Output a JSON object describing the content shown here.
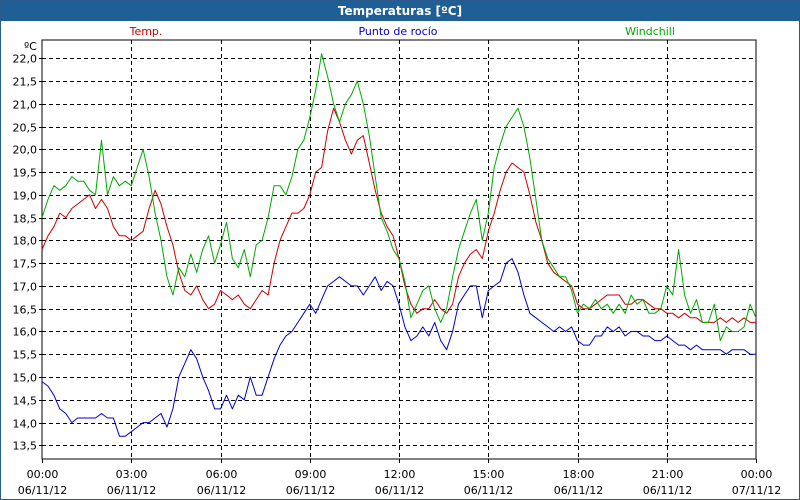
{
  "window": {
    "title": "Temperaturas [ºC]"
  },
  "chart_data": {
    "type": "line",
    "yunit": "ºC",
    "ylim": [
      13.2,
      22.4
    ],
    "yticks": [
      "13,5",
      "14,0",
      "14,5",
      "15,0",
      "15,5",
      "16,0",
      "16,5",
      "17,0",
      "17,5",
      "18,0",
      "18,5",
      "19,0",
      "19,5",
      "20,0",
      "20,5",
      "21,0",
      "21,5",
      "22,0"
    ],
    "ytick_values": [
      13.5,
      14.0,
      14.5,
      15.0,
      15.5,
      16.0,
      16.5,
      17.0,
      17.5,
      18.0,
      18.5,
      19.0,
      19.5,
      20.0,
      20.5,
      21.0,
      21.5,
      22.0
    ],
    "xlim": [
      0,
      24
    ],
    "xticks": [
      {
        "time": "00:00",
        "date": "06/11/12"
      },
      {
        "time": "03:00",
        "date": "06/11/12"
      },
      {
        "time": "06:00",
        "date": "06/11/12"
      },
      {
        "time": "09:00",
        "date": "06/11/12"
      },
      {
        "time": "12:00",
        "date": "06/11/12"
      },
      {
        "time": "15:00",
        "date": "06/11/12"
      },
      {
        "time": "18:00",
        "date": "06/11/12"
      },
      {
        "time": "21:00",
        "date": "06/11/12"
      },
      {
        "time": "00:00",
        "date": "07/11/12"
      }
    ],
    "xtick_hours": [
      0,
      3,
      6,
      9,
      12,
      15,
      18,
      21,
      24
    ],
    "grid": true,
    "legend": "top",
    "series": [
      {
        "name": "Temp.",
        "color": "#cc0000",
        "x": [
          0,
          0.2,
          0.4,
          0.6,
          0.8,
          1.0,
          1.2,
          1.4,
          1.6,
          1.8,
          2.0,
          2.2,
          2.4,
          2.6,
          2.8,
          3.0,
          3.2,
          3.4,
          3.6,
          3.8,
          4.0,
          4.2,
          4.4,
          4.6,
          4.8,
          5.0,
          5.2,
          5.4,
          5.6,
          5.8,
          6.0,
          6.2,
          6.4,
          6.6,
          6.8,
          7.0,
          7.2,
          7.4,
          7.6,
          7.8,
          8.0,
          8.2,
          8.4,
          8.6,
          8.8,
          9.0,
          9.2,
          9.4,
          9.6,
          9.8,
          10.0,
          10.2,
          10.4,
          10.6,
          10.8,
          11.0,
          11.2,
          11.4,
          11.6,
          11.8,
          12.0,
          12.2,
          12.4,
          12.6,
          12.8,
          13.0,
          13.2,
          13.4,
          13.6,
          13.8,
          14.0,
          14.2,
          14.4,
          14.6,
          14.8,
          15.0,
          15.2,
          15.4,
          15.6,
          15.8,
          16.0,
          16.2,
          16.4,
          16.6,
          16.8,
          17.0,
          17.2,
          17.4,
          17.6,
          17.8,
          18.0,
          18.2,
          18.4,
          18.6,
          18.8,
          19.0,
          19.2,
          19.4,
          19.6,
          19.8,
          20.0,
          20.2,
          20.4,
          20.6,
          20.8,
          21.0,
          21.2,
          21.4,
          21.6,
          21.8,
          22.0,
          22.2,
          22.4,
          22.6,
          22.8,
          23.0,
          23.2,
          23.4,
          23.6,
          23.8,
          24.0
        ],
        "values": [
          17.8,
          18.1,
          18.3,
          18.6,
          18.5,
          18.7,
          18.8,
          18.9,
          19.0,
          18.7,
          18.9,
          18.7,
          18.3,
          18.1,
          18.1,
          18.0,
          18.1,
          18.2,
          18.7,
          19.1,
          18.8,
          18.3,
          17.9,
          17.3,
          16.9,
          16.8,
          17.0,
          16.7,
          16.5,
          16.6,
          16.9,
          16.8,
          16.7,
          16.8,
          16.6,
          16.5,
          16.7,
          16.9,
          16.8,
          17.5,
          18.0,
          18.3,
          18.6,
          18.6,
          18.7,
          19.0,
          19.5,
          19.6,
          20.4,
          20.9,
          20.6,
          20.2,
          19.9,
          20.2,
          20.3,
          19.7,
          19.1,
          18.6,
          18.3,
          18.1,
          17.6,
          17.0,
          16.6,
          16.4,
          16.5,
          16.5,
          16.7,
          16.5,
          16.4,
          16.6,
          17.2,
          17.5,
          17.7,
          17.8,
          17.6,
          18.2,
          18.6,
          19.1,
          19.5,
          19.7,
          19.6,
          19.5,
          19.0,
          18.4,
          18.0,
          17.5,
          17.3,
          17.2,
          17.1,
          17.0,
          16.6,
          16.5,
          16.5,
          16.6,
          16.7,
          16.8,
          16.8,
          16.8,
          16.6,
          16.6,
          16.7,
          16.7,
          16.6,
          16.5,
          16.5,
          16.4,
          16.4,
          16.3,
          16.4,
          16.3,
          16.3,
          16.2,
          16.2,
          16.2,
          16.3,
          16.2,
          16.3,
          16.2,
          16.3,
          16.2,
          16.2
        ]
      },
      {
        "name": "Punto de rocío",
        "color": "#0000cc",
        "x": [
          0,
          0.2,
          0.4,
          0.6,
          0.8,
          1.0,
          1.2,
          1.4,
          1.6,
          1.8,
          2.0,
          2.2,
          2.4,
          2.6,
          2.8,
          3.0,
          3.2,
          3.4,
          3.6,
          3.8,
          4.0,
          4.2,
          4.4,
          4.6,
          4.8,
          5.0,
          5.2,
          5.4,
          5.6,
          5.8,
          6.0,
          6.2,
          6.4,
          6.6,
          6.8,
          7.0,
          7.2,
          7.4,
          7.6,
          7.8,
          8.0,
          8.2,
          8.4,
          8.6,
          8.8,
          9.0,
          9.2,
          9.4,
          9.6,
          9.8,
          10.0,
          10.2,
          10.4,
          10.6,
          10.8,
          11.0,
          11.2,
          11.4,
          11.6,
          11.8,
          12.0,
          12.2,
          12.4,
          12.6,
          12.8,
          13.0,
          13.2,
          13.4,
          13.6,
          13.8,
          14.0,
          14.2,
          14.4,
          14.6,
          14.8,
          15.0,
          15.2,
          15.4,
          15.6,
          15.8,
          16.0,
          16.2,
          16.4,
          16.6,
          16.8,
          17.0,
          17.2,
          17.4,
          17.6,
          17.8,
          18.0,
          18.2,
          18.4,
          18.6,
          18.8,
          19.0,
          19.2,
          19.4,
          19.6,
          19.8,
          20.0,
          20.2,
          20.4,
          20.6,
          20.8,
          21.0,
          21.2,
          21.4,
          21.6,
          21.8,
          22.0,
          22.2,
          22.4,
          22.6,
          22.8,
          23.0,
          23.2,
          23.4,
          23.6,
          23.8,
          24.0
        ],
        "values": [
          14.9,
          14.8,
          14.6,
          14.3,
          14.2,
          14.0,
          14.1,
          14.1,
          14.1,
          14.1,
          14.2,
          14.1,
          14.1,
          13.7,
          13.7,
          13.8,
          13.9,
          14.0,
          14.0,
          14.1,
          14.2,
          13.9,
          14.3,
          15.0,
          15.3,
          15.6,
          15.4,
          15.0,
          14.7,
          14.3,
          14.3,
          14.6,
          14.3,
          14.6,
          14.5,
          15.0,
          14.6,
          14.6,
          15.0,
          15.4,
          15.7,
          15.9,
          16.0,
          16.2,
          16.4,
          16.6,
          16.4,
          16.7,
          17.0,
          17.1,
          17.2,
          17.1,
          17.0,
          17.0,
          16.8,
          17.0,
          17.2,
          16.9,
          17.1,
          17.0,
          16.6,
          16.1,
          15.8,
          15.9,
          16.1,
          15.9,
          16.2,
          15.8,
          15.6,
          16.0,
          16.6,
          16.8,
          17.0,
          17.0,
          16.3,
          16.9,
          17.0,
          17.1,
          17.5,
          17.6,
          17.3,
          16.8,
          16.4,
          16.3,
          16.2,
          16.1,
          16.0,
          16.1,
          16.0,
          16.1,
          15.8,
          15.7,
          15.7,
          15.9,
          15.9,
          16.1,
          16.0,
          16.1,
          15.9,
          16.0,
          16.0,
          15.9,
          15.9,
          15.8,
          15.8,
          15.9,
          15.8,
          15.7,
          15.7,
          15.6,
          15.7,
          15.6,
          15.6,
          15.6,
          15.6,
          15.5,
          15.6,
          15.6,
          15.6,
          15.5,
          15.5
        ]
      },
      {
        "name": "Windchill",
        "color": "#00aa00",
        "x": [
          0,
          0.2,
          0.4,
          0.6,
          0.8,
          1.0,
          1.2,
          1.4,
          1.6,
          1.8,
          2.0,
          2.2,
          2.4,
          2.6,
          2.8,
          3.0,
          3.2,
          3.4,
          3.6,
          3.8,
          4.0,
          4.2,
          4.4,
          4.6,
          4.8,
          5.0,
          5.2,
          5.4,
          5.6,
          5.8,
          6.0,
          6.2,
          6.4,
          6.6,
          6.8,
          7.0,
          7.2,
          7.4,
          7.6,
          7.8,
          8.0,
          8.2,
          8.4,
          8.6,
          8.8,
          9.0,
          9.2,
          9.4,
          9.6,
          9.8,
          10.0,
          10.2,
          10.4,
          10.6,
          10.8,
          11.0,
          11.2,
          11.4,
          11.6,
          11.8,
          12.0,
          12.2,
          12.4,
          12.6,
          12.8,
          13.0,
          13.2,
          13.4,
          13.6,
          13.8,
          14.0,
          14.2,
          14.4,
          14.6,
          14.8,
          15.0,
          15.2,
          15.4,
          15.6,
          15.8,
          16.0,
          16.2,
          16.4,
          16.6,
          16.8,
          17.0,
          17.2,
          17.4,
          17.6,
          17.8,
          18.0,
          18.2,
          18.4,
          18.6,
          18.8,
          19.0,
          19.2,
          19.4,
          19.6,
          19.8,
          20.0,
          20.2,
          20.4,
          20.6,
          20.8,
          21.0,
          21.2,
          21.4,
          21.6,
          21.8,
          22.0,
          22.2,
          22.4,
          22.6,
          22.8,
          23.0,
          23.2,
          23.4,
          23.6,
          23.8,
          24.0
        ],
        "values": [
          18.5,
          18.9,
          19.2,
          19.1,
          19.2,
          19.4,
          19.3,
          19.3,
          19.1,
          19.0,
          20.2,
          19.0,
          19.4,
          19.2,
          19.3,
          19.2,
          19.6,
          20.0,
          19.4,
          18.6,
          18.0,
          17.2,
          16.8,
          17.4,
          17.2,
          17.7,
          17.3,
          17.8,
          18.1,
          17.5,
          17.9,
          18.4,
          17.6,
          17.4,
          17.8,
          17.2,
          17.9,
          18.0,
          18.5,
          19.2,
          19.2,
          19.0,
          19.4,
          20.0,
          20.2,
          20.7,
          21.3,
          22.1,
          21.6,
          21.0,
          20.6,
          21.0,
          21.2,
          21.5,
          21.0,
          20.3,
          19.4,
          18.5,
          18.2,
          17.8,
          17.6,
          17.1,
          16.3,
          16.6,
          16.9,
          17.0,
          16.5,
          16.2,
          16.5,
          17.2,
          17.8,
          18.2,
          18.6,
          18.9,
          18.0,
          18.6,
          19.6,
          20.1,
          20.5,
          20.7,
          20.9,
          20.5,
          19.8,
          18.9,
          18.0,
          17.6,
          17.4,
          17.2,
          17.2,
          16.9,
          16.4,
          16.6,
          16.5,
          16.7,
          16.5,
          16.6,
          16.4,
          16.6,
          16.4,
          16.8,
          16.6,
          16.7,
          16.4,
          16.4,
          16.5,
          17.0,
          16.8,
          17.8,
          16.8,
          16.4,
          16.7,
          16.2,
          16.2,
          16.6,
          15.8,
          16.1,
          16.0,
          16.0,
          16.1,
          16.6,
          16.3
        ]
      }
    ]
  }
}
